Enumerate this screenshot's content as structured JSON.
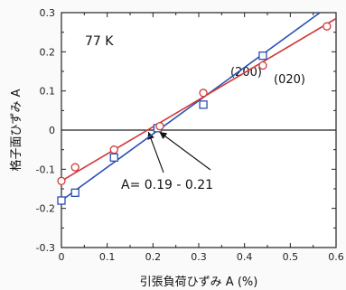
{
  "chart_data": {
    "type": "line",
    "xlabel": "引張負荷ひずみ A (%)",
    "ylabel": "格子面ひずみ A",
    "xlim": [
      0,
      0.6
    ],
    "ylim": [
      -0.3,
      0.3
    ],
    "x_ticks": [
      "0",
      "0.1",
      "0.2",
      "0.3",
      "0.4",
      "0.5",
      "0.6"
    ],
    "y_ticks": [
      "0.3",
      "0.2",
      "0.1",
      "0",
      "-0.1",
      "-0.2",
      "-0.3"
    ],
    "annotations": {
      "temperature": "77 K",
      "crossing": "A",
      "crossing_rest": "= 0.19 - 0.21"
    },
    "series": [
      {
        "name": "(200)",
        "color": "#2a4fb4",
        "marker": "square",
        "points": [
          {
            "x": 0.0,
            "y": -0.18
          },
          {
            "x": 0.03,
            "y": -0.16
          },
          {
            "x": 0.115,
            "y": -0.07
          },
          {
            "x": 0.21,
            "y": 0.005
          },
          {
            "x": 0.31,
            "y": 0.065
          },
          {
            "x": 0.44,
            "y": 0.19
          }
        ],
        "fit": [
          [
            0.0,
            -0.18
          ],
          [
            0.6,
            0.33
          ]
        ]
      },
      {
        "name": "(020)",
        "color": "#d03a3a",
        "marker": "circle",
        "points": [
          {
            "x": 0.0,
            "y": -0.13
          },
          {
            "x": 0.03,
            "y": -0.095
          },
          {
            "x": 0.115,
            "y": -0.05
          },
          {
            "x": 0.215,
            "y": 0.01
          },
          {
            "x": 0.31,
            "y": 0.095
          },
          {
            "x": 0.44,
            "y": 0.165
          },
          {
            "x": 0.58,
            "y": 0.265
          }
        ],
        "fit": [
          [
            0.0,
            -0.13
          ],
          [
            0.6,
            0.285
          ]
        ]
      }
    ],
    "zero_line": true
  }
}
